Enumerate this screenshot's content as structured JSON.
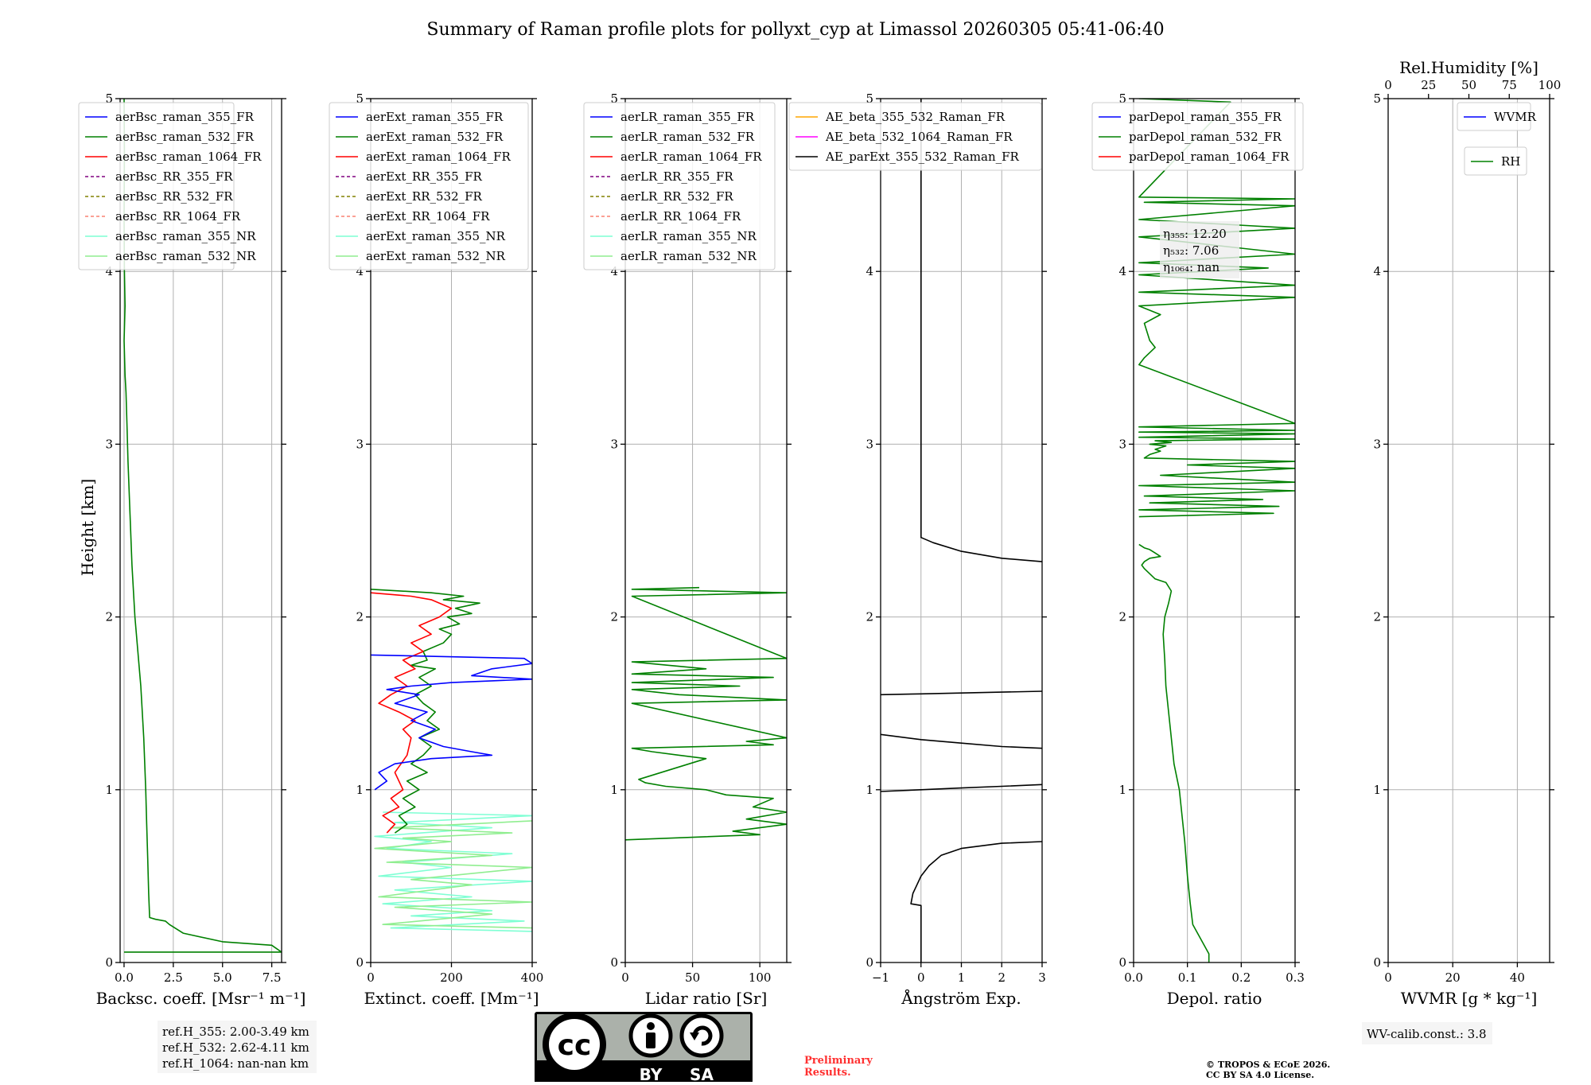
{
  "title": "Summary of Raman profile plots for pollyxt_cyp at Limassol 20260305 05:41-06:40",
  "ylabel": "Height [km]",
  "y_ticks": [
    "0",
    "1",
    "2",
    "3",
    "4",
    "5"
  ],
  "chart_data": [
    {
      "id": "bsc",
      "type": "line",
      "xlabel": "Backsc. coeff. [Msr⁻¹ m⁻¹]",
      "xlim": [
        -0.2,
        8.0
      ],
      "ylim": [
        0,
        5
      ],
      "xticks": [
        0,
        2.5,
        5.0,
        7.5
      ],
      "xtick_labels": [
        "0.0",
        "2.5",
        "5.0",
        "7.5"
      ],
      "legend": [
        {
          "label": "aerBsc_raman_355_FR",
          "color": "#0000ff",
          "dash": false
        },
        {
          "label": "aerBsc_raman_532_FR",
          "color": "#008000",
          "dash": false
        },
        {
          "label": "aerBsc_raman_1064_FR",
          "color": "#ff0000",
          "dash": false
        },
        {
          "label": "aerBsc_RR_355_FR",
          "color": "#800080",
          "dash": true
        },
        {
          "label": "aerBsc_RR_532_FR",
          "color": "#808000",
          "dash": true
        },
        {
          "label": "aerBsc_RR_1064_FR",
          "color": "#fa8072",
          "dash": true
        },
        {
          "label": "aerBsc_raman_355_NR",
          "color": "#7fffd4",
          "dash": false
        },
        {
          "label": "aerBsc_raman_532_NR",
          "color": "#90ee90",
          "dash": false
        }
      ],
      "series": [
        {
          "name": "aerBsc_raman_532_FR",
          "color": "#008000",
          "x": [
            8.0,
            7.5,
            5.0,
            3.0,
            2.3,
            2.1,
            1.6,
            1.3,
            1.25,
            1.2,
            1.15,
            1.1,
            1.0,
            0.85,
            0.7,
            0.55,
            0.4,
            0.3,
            0.2,
            0.15,
            0.1,
            0.05,
            0.0,
            0.05,
            0.02,
            0.0,
            0.02,
            0.0
          ],
          "y": [
            0.06,
            0.1,
            0.12,
            0.17,
            0.22,
            0.24,
            0.25,
            0.26,
            0.4,
            0.6,
            0.8,
            1.0,
            1.3,
            1.6,
            1.8,
            2.0,
            2.3,
            2.6,
            2.9,
            3.1,
            3.3,
            3.4,
            3.6,
            3.8,
            4.0,
            4.3,
            4.7,
            5.0
          ]
        }
      ],
      "hline": {
        "x0": 0.0,
        "x1": 8.0,
        "y": 0.06,
        "color": "#008000"
      }
    },
    {
      "id": "ext",
      "type": "line",
      "xlabel": "Extinct. coeff. [Mm⁻¹]",
      "xlim": [
        0,
        400
      ],
      "ylim": [
        0,
        5
      ],
      "xticks": [
        0,
        200,
        400
      ],
      "xtick_labels": [
        "0",
        "200",
        "400"
      ],
      "legend": [
        {
          "label": "aerExt_raman_355_FR",
          "color": "#0000ff",
          "dash": false
        },
        {
          "label": "aerExt_raman_532_FR",
          "color": "#008000",
          "dash": false
        },
        {
          "label": "aerExt_raman_1064_FR",
          "color": "#ff0000",
          "dash": false
        },
        {
          "label": "aerExt_RR_355_FR",
          "color": "#800080",
          "dash": true
        },
        {
          "label": "aerExt_RR_532_FR",
          "color": "#808000",
          "dash": true
        },
        {
          "label": "aerExt_RR_1064_FR",
          "color": "#fa8072",
          "dash": true
        },
        {
          "label": "aerExt_raman_355_NR",
          "color": "#7fffd4",
          "dash": false
        },
        {
          "label": "aerExt_raman_532_NR",
          "color": "#90ee90",
          "dash": false
        }
      ],
      "series": [
        {
          "name": "aerExt_raman_355_NR",
          "color": "#7fffd4",
          "x": [
            400,
            50,
            380,
            100,
            300,
            30,
            250,
            60,
            400,
            20,
            200,
            80,
            350,
            40,
            150,
            10,
            300,
            60,
            400,
            30
          ],
          "y": [
            0.18,
            0.2,
            0.24,
            0.27,
            0.3,
            0.34,
            0.38,
            0.42,
            0.47,
            0.5,
            0.55,
            0.58,
            0.63,
            0.66,
            0.7,
            0.73,
            0.78,
            0.81,
            0.85,
            0.87
          ]
        },
        {
          "name": "aerExt_raman_532_NR",
          "color": "#90ee90",
          "x": [
            400,
            30,
            300,
            60,
            400,
            20,
            250,
            100,
            400,
            40,
            300,
            10,
            200,
            80,
            350,
            50,
            400
          ],
          "y": [
            0.2,
            0.22,
            0.28,
            0.32,
            0.35,
            0.38,
            0.45,
            0.48,
            0.55,
            0.58,
            0.62,
            0.66,
            0.7,
            0.72,
            0.75,
            0.78,
            0.82
          ]
        },
        {
          "name": "aerExt_raman_532_FR",
          "color": "#008000",
          "x": [
            60,
            90,
            70,
            110,
            80,
            120,
            90,
            140,
            100,
            130,
            150,
            120,
            170,
            140,
            160,
            130,
            110,
            150,
            120,
            160,
            100,
            140,
            130,
            180,
            200,
            170,
            220,
            190,
            250,
            210,
            270,
            180,
            230,
            150,
            0
          ],
          "y": [
            0.75,
            0.8,
            0.85,
            0.9,
            0.95,
            1.0,
            1.05,
            1.1,
            1.15,
            1.2,
            1.25,
            1.3,
            1.35,
            1.4,
            1.45,
            1.5,
            1.55,
            1.6,
            1.65,
            1.7,
            1.72,
            1.75,
            1.8,
            1.85,
            1.9,
            1.93,
            1.96,
            2.0,
            2.02,
            2.05,
            2.08,
            2.1,
            2.12,
            2.14,
            2.16
          ]
        },
        {
          "name": "aerExt_raman_1064_FR",
          "color": "#ff0000",
          "x": [
            40,
            60,
            30,
            70,
            50,
            80,
            60,
            90,
            100,
            80,
            110,
            70,
            20,
            50,
            90,
            60,
            110,
            80,
            130,
            100,
            150,
            120,
            170,
            200,
            150,
            100,
            0
          ],
          "y": [
            0.75,
            0.8,
            0.85,
            0.9,
            0.95,
            1.0,
            1.1,
            1.2,
            1.3,
            1.35,
            1.4,
            1.45,
            1.5,
            1.55,
            1.6,
            1.65,
            1.7,
            1.75,
            1.8,
            1.85,
            1.9,
            1.95,
            2.0,
            2.05,
            2.1,
            2.12,
            2.14
          ]
        },
        {
          "name": "aerExt_raman_355_FR",
          "color": "#0000ff",
          "x": [
            10,
            40,
            20,
            60,
            150,
            300,
            250,
            180,
            120,
            160,
            100,
            140,
            60,
            120,
            40,
            100,
            200,
            400,
            250,
            300,
            400,
            380,
            0
          ],
          "y": [
            1.0,
            1.05,
            1.1,
            1.15,
            1.18,
            1.2,
            1.22,
            1.25,
            1.3,
            1.35,
            1.4,
            1.45,
            1.5,
            1.55,
            1.58,
            1.6,
            1.62,
            1.64,
            1.66,
            1.7,
            1.73,
            1.76,
            1.78
          ]
        }
      ]
    },
    {
      "id": "lr",
      "type": "line",
      "xlabel": "Lidar ratio [Sr]",
      "xlim": [
        0,
        120
      ],
      "ylim": [
        0,
        5
      ],
      "xticks": [
        0,
        50,
        100
      ],
      "xtick_labels": [
        "0",
        "50",
        "100"
      ],
      "legend": [
        {
          "label": "aerLR_raman_355_FR",
          "color": "#0000ff",
          "dash": false
        },
        {
          "label": "aerLR_raman_532_FR",
          "color": "#008000",
          "dash": false
        },
        {
          "label": "aerLR_raman_1064_FR",
          "color": "#ff0000",
          "dash": false
        },
        {
          "label": "aerLR_RR_355_FR",
          "color": "#800080",
          "dash": true
        },
        {
          "label": "aerLR_RR_532_FR",
          "color": "#808000",
          "dash": true
        },
        {
          "label": "aerLR_RR_1064_FR",
          "color": "#fa8072",
          "dash": true
        },
        {
          "label": "aerLR_raman_355_NR",
          "color": "#7fffd4",
          "dash": false
        },
        {
          "label": "aerLR_raman_532_NR",
          "color": "#90ee90",
          "dash": false
        }
      ],
      "series": [
        {
          "name": "aerLR_raman_532_FR",
          "color": "#008000",
          "x": [
            0,
            100,
            80,
            120,
            90,
            120,
            95,
            110,
            75,
            60,
            30,
            15,
            10,
            60,
            40,
            20,
            5,
            110,
            90,
            120,
            5,
            120,
            40,
            5,
            85,
            5,
            110,
            5,
            60,
            5,
            120,
            5,
            120,
            5,
            55
          ],
          "y": [
            0.71,
            0.74,
            0.76,
            0.8,
            0.83,
            0.87,
            0.9,
            0.95,
            0.97,
            1.0,
            1.02,
            1.04,
            1.06,
            1.18,
            1.2,
            1.22,
            1.24,
            1.26,
            1.28,
            1.3,
            1.5,
            1.52,
            1.55,
            1.58,
            1.6,
            1.62,
            1.65,
            1.67,
            1.7,
            1.74,
            1.76,
            2.12,
            2.14,
            2.16,
            2.17
          ]
        }
      ]
    },
    {
      "id": "ae",
      "type": "line",
      "xlabel": "Ångström Exp.",
      "xlim": [
        -1,
        3
      ],
      "ylim": [
        0,
        5
      ],
      "xticks": [
        -1,
        0,
        1,
        2,
        3
      ],
      "xtick_labels": [
        "−1",
        "0",
        "1",
        "2",
        "3"
      ],
      "legend": [
        {
          "label": "AE_beta_355_532_Raman_FR",
          "color": "#ffa500",
          "dash": false
        },
        {
          "label": "AE_beta_532_1064_Raman_FR",
          "color": "#ff00ff",
          "dash": false
        },
        {
          "label": "AE_parExt_355_532_Raman_FR",
          "color": "#000000",
          "dash": false
        }
      ],
      "series": [
        {
          "name": "AE_parExt_355_532_Raman_FR",
          "color": "#000000",
          "x": [
            0,
            0,
            -0.25,
            -0.2,
            -0.1,
            0.0,
            0.2,
            0.5,
            1.0,
            2.0,
            3.0
          ],
          "y": [
            0,
            0.33,
            0.34,
            0.4,
            0.45,
            0.5,
            0.56,
            0.62,
            0.66,
            0.69,
            0.7
          ]
        },
        {
          "name": "AE_parExt_355_532_Raman_FR",
          "color": "#000000",
          "x": [
            -1,
            0,
            1,
            2,
            3
          ],
          "y": [
            0.99,
            1.0,
            1.01,
            1.02,
            1.03
          ]
        },
        {
          "name": "AE_parExt_355_532_Raman_FR",
          "color": "#000000",
          "x": [
            -1,
            0,
            1,
            2,
            3
          ],
          "y": [
            1.32,
            1.29,
            1.27,
            1.25,
            1.24
          ]
        },
        {
          "name": "AE_parExt_355_532_Raman_FR",
          "color": "#000000",
          "x": [
            -1,
            0,
            1,
            2,
            3
          ],
          "y": [
            1.55,
            1.555,
            1.56,
            1.565,
            1.57
          ]
        },
        {
          "name": "AE_parExt_355_532_Raman_FR",
          "color": "#000000",
          "x": [
            3,
            2,
            1,
            0.3,
            0,
            0
          ],
          "y": [
            2.32,
            2.34,
            2.38,
            2.43,
            2.46,
            5.0
          ]
        }
      ]
    },
    {
      "id": "depol",
      "type": "line",
      "xlabel": "Depol. ratio",
      "xlim": [
        0,
        0.3
      ],
      "ylim": [
        0,
        5
      ],
      "xticks": [
        0,
        0.1,
        0.2,
        0.3
      ],
      "xtick_labels": [
        "0.0",
        "0.1",
        "0.2",
        "0.3"
      ],
      "legend": [
        {
          "label": "parDepol_raman_355_FR",
          "color": "#0000ff",
          "dash": false
        },
        {
          "label": "parDepol_raman_532_FR",
          "color": "#008000",
          "dash": false
        },
        {
          "label": "parDepol_raman_1064_FR",
          "color": "#ff0000",
          "dash": false
        }
      ],
      "series": [
        {
          "name": "parDepol_raman_532_FR",
          "color": "#008000",
          "x": [
            0.14,
            0.14,
            0.11,
            0.105,
            0.1,
            0.095,
            0.09,
            0.085,
            0.075,
            0.07,
            0.065,
            0.06,
            0.058,
            0.055,
            0.058,
            0.065,
            0.07,
            0.06,
            0.04,
            0.03,
            0.02,
            0.015,
            0.02,
            0.03,
            0.05,
            0.04,
            0.03,
            0.02,
            0.01
          ],
          "y": [
            0.0,
            0.05,
            0.22,
            0.35,
            0.5,
            0.7,
            0.85,
            1.0,
            1.15,
            1.3,
            1.45,
            1.6,
            1.75,
            1.9,
            2.0,
            2.08,
            2.15,
            2.2,
            2.22,
            2.25,
            2.28,
            2.3,
            2.32,
            2.34,
            2.35,
            2.37,
            2.39,
            2.4,
            2.42
          ]
        },
        {
          "name": "parDepol_raman_532_FR",
          "color": "#008000",
          "x": [
            0.01,
            0.26,
            0.01,
            0.27,
            0.03,
            0.24,
            0.02,
            0.3,
            0.01,
            0.3,
            0.05,
            0.3,
            0.1,
            0.3,
            0.02,
            0.03,
            0.05,
            0.04,
            0.06,
            0.03,
            0.07,
            0.04,
            0.3,
            0.01,
            0.3,
            0.01,
            0.3,
            0.01,
            0.3,
            0.01,
            0.02,
            0.04,
            0.03,
            0.02,
            0.05,
            0.01,
            0.3,
            0.01,
            0.3,
            0.01,
            0.25,
            0.01,
            0.3,
            0.01,
            0.3,
            0.01,
            0.3,
            0.02,
            0.3,
            0.01,
            0.18,
            0.01
          ],
          "y": [
            2.58,
            2.6,
            2.62,
            2.64,
            2.66,
            2.68,
            2.7,
            2.73,
            2.76,
            2.78,
            2.82,
            2.86,
            2.88,
            2.9,
            2.92,
            2.94,
            2.96,
            2.97,
            2.99,
            3.0,
            3.01,
            3.02,
            3.03,
            3.04,
            3.06,
            3.07,
            3.08,
            3.1,
            3.12,
            3.46,
            3.5,
            3.56,
            3.6,
            3.7,
            3.75,
            3.8,
            3.85,
            3.88,
            3.92,
            3.98,
            4.02,
            4.05,
            4.1,
            4.2,
            4.25,
            4.3,
            4.38,
            4.4,
            4.42,
            4.43,
            4.98,
            5.0
          ]
        }
      ],
      "annotation": [
        "η₃₅₅: 12.20",
        "η₅₃₂: 7.06",
        "η₁₀₆₄: nan"
      ]
    },
    {
      "id": "wv",
      "type": "line",
      "xlabel": "WVMR [g * kg⁻¹]",
      "xlim": [
        0,
        50
      ],
      "ylim": [
        0,
        5
      ],
      "xticks": [
        0,
        20,
        40
      ],
      "xtick_labels": [
        "0",
        "20",
        "40"
      ],
      "top_xlabel": "Rel.Humidity [%]",
      "top_xlim": [
        0,
        100
      ],
      "top_xticks": [
        0,
        25,
        50,
        75,
        100
      ],
      "top_xtick_labels": [
        "0",
        "25",
        "50",
        "75",
        "100"
      ],
      "legend": [
        {
          "label": "WVMR",
          "color": "#0000ff",
          "dash": false
        }
      ],
      "legend2": [
        {
          "label": "RH",
          "color": "#008000",
          "dash": false
        }
      ],
      "series": []
    }
  ],
  "ref_heights": [
    "ref.H_355: 2.00-3.49 km",
    "ref.H_532: 2.62-4.11 km",
    "ref.H_1064: nan-nan km"
  ],
  "license_badge": {
    "cc": "cc",
    "by": "BY",
    "sa": "SA"
  },
  "preliminary": [
    "Preliminary",
    "Results."
  ],
  "copyright": [
    "© TROPOS & ECoE 2026.",
    "CC BY SA 4.0 License."
  ],
  "wv_calib": "WV-calib.const.: 3.8"
}
